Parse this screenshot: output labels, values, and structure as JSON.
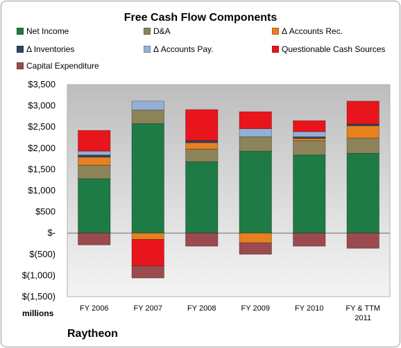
{
  "chart_data": {
    "type": "bar",
    "stacked": true,
    "title": "Free Cash Flow Components",
    "categories": [
      "FY 2006",
      "FY 2007",
      "FY 2008",
      "FY 2009",
      "FY 2010",
      "FY & TTM 2011"
    ],
    "units_label": "millions",
    "company": "Raytheon",
    "ylim": [
      -1500,
      3500
    ],
    "yticks": [
      3500,
      3000,
      2500,
      2000,
      1500,
      1000,
      500,
      0,
      -500,
      -1000,
      -1500
    ],
    "ytick_labels": [
      "$3,500",
      "$3,000",
      "$2,500",
      "$2,000",
      "$1,500",
      "$1,000",
      "$500",
      "$-",
      "$(500)",
      "$(1,000)",
      "$(1,500)"
    ],
    "legend_position": "top",
    "grid": false,
    "series": [
      {
        "name": "Net Income",
        "color": "#1e7b45",
        "values": [
          1280,
          2580,
          1680,
          1930,
          1840,
          1880
        ]
      },
      {
        "name": "D&A",
        "color": "#8c8458",
        "values": [
          320,
          320,
          300,
          340,
          340,
          360
        ]
      },
      {
        "name": "Δ Accounts Rec.",
        "color": "#e7801f",
        "values": [
          190,
          -150,
          150,
          -230,
          50,
          290
        ]
      },
      {
        "name": "Δ Inventories",
        "color": "#2f4468",
        "values": [
          50,
          0,
          50,
          0,
          40,
          40
        ]
      },
      {
        "name": "Δ Accounts Pay.",
        "color": "#94b0d6",
        "values": [
          90,
          210,
          0,
          190,
          120,
          0
        ]
      },
      {
        "name": "Questionable Cash Sources",
        "color": "#e8161c",
        "values": [
          490,
          -620,
          730,
          400,
          260,
          540
        ]
      },
      {
        "name": "Capital Expenditure",
        "color": "#9b4a4f",
        "values": [
          -280,
          -290,
          -310,
          -270,
          -310,
          -360
        ]
      }
    ]
  }
}
